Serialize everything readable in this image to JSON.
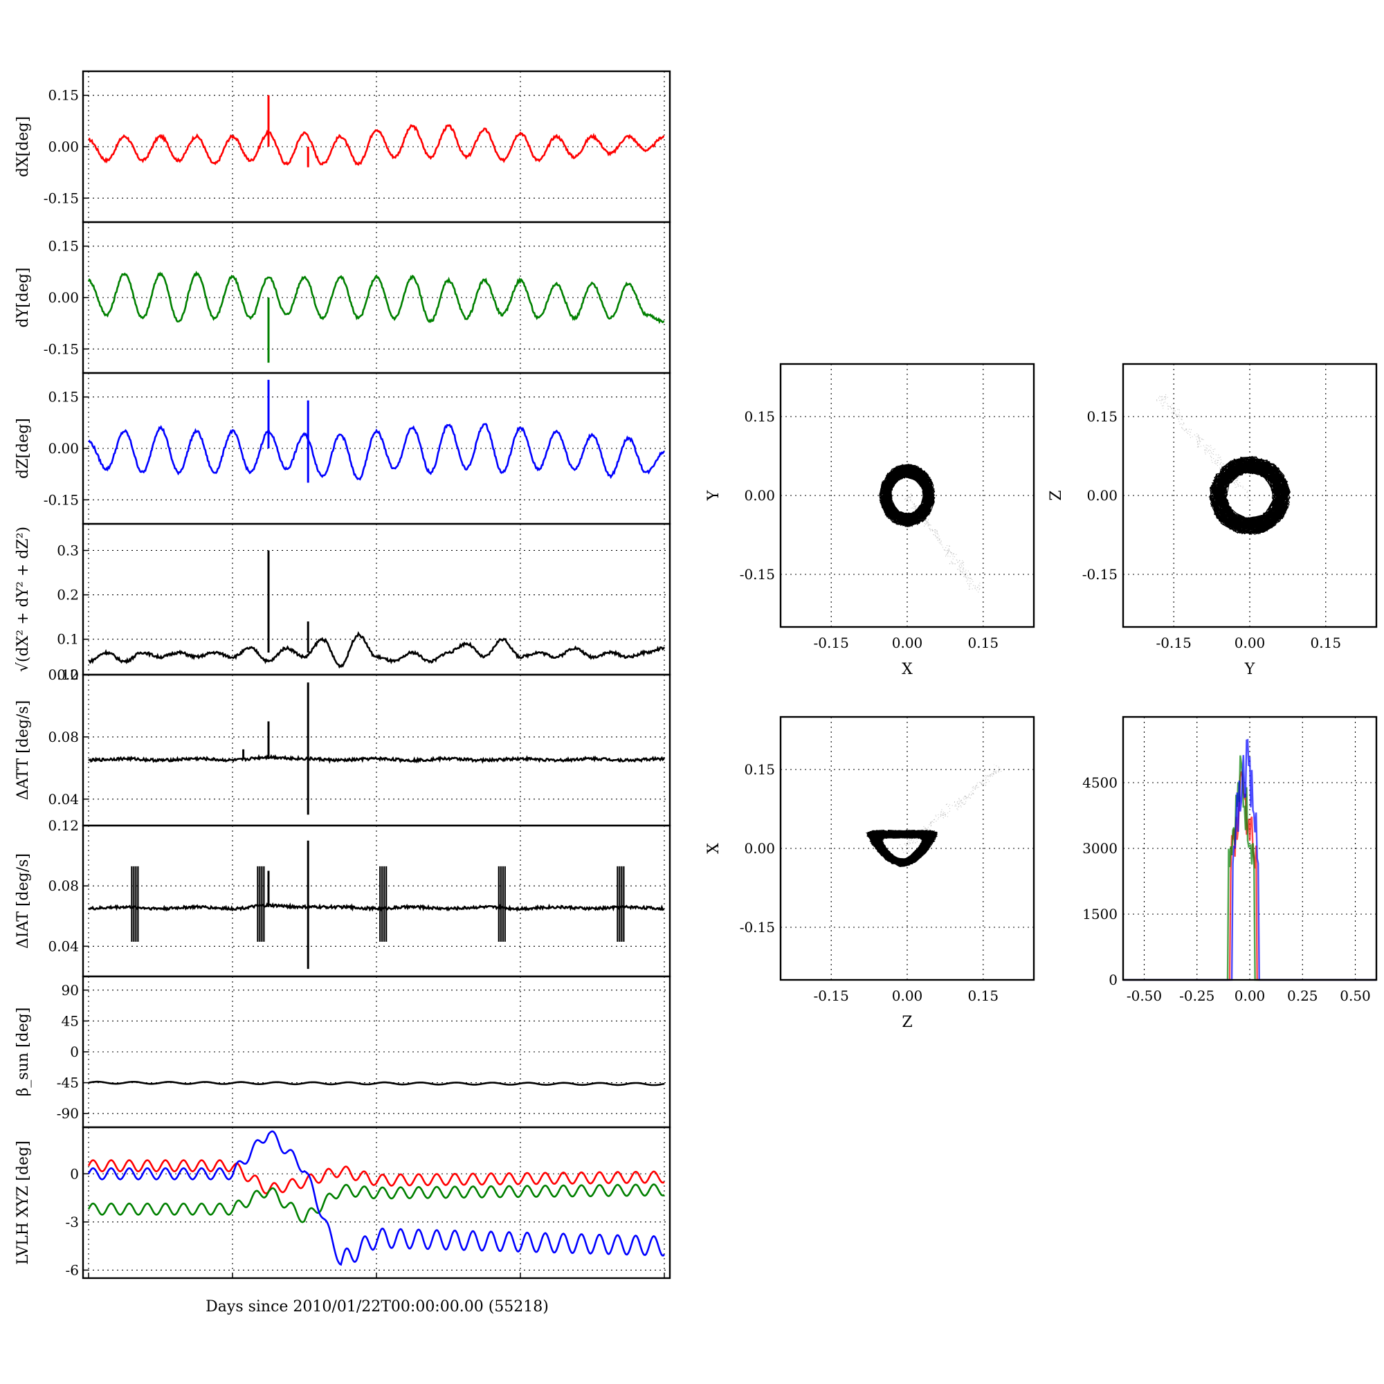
{
  "figure": {
    "xlabel": "Days since 2010/01/22T00:00:00.00 (55218)"
  },
  "chart_data": [
    {
      "type": "line",
      "id": "dX",
      "ylabel": "dX[deg]",
      "ylim": [
        -0.22,
        0.22
      ],
      "yticks": [
        "0.15",
        "0.00",
        "-0.15"
      ],
      "ytick_values": [
        0.15,
        0.0,
        -0.15
      ],
      "series": [
        {
          "color": "#ff0000",
          "x": [
            0,
            0.5,
            1,
            1.5,
            2,
            2.5,
            3,
            3.5,
            4,
            4.5,
            5,
            5.5,
            6,
            6.5,
            7,
            7.5,
            8,
            8.5,
            9,
            9.5,
            10,
            10.5,
            11,
            11.5,
            12,
            12.5,
            13,
            13.5,
            14,
            14.5,
            15,
            15.5,
            16
          ],
          "y": [
            0.02,
            -0.04,
            0.03,
            -0.04,
            0.03,
            -0.04,
            0.03,
            -0.05,
            0.03,
            -0.04,
            0.04,
            -0.05,
            0.04,
            -0.05,
            0.03,
            -0.05,
            0.05,
            -0.03,
            0.06,
            -0.03,
            0.06,
            -0.03,
            0.05,
            -0.04,
            0.04,
            -0.04,
            0.03,
            -0.03,
            0.03,
            -0.02,
            0.03,
            -0.01,
            0.03
          ],
          "spikes": [
            {
              "x": 5.0,
              "y": 0.15
            },
            {
              "x": 6.1,
              "y": -0.06
            }
          ]
        }
      ]
    },
    {
      "type": "line",
      "id": "dY",
      "ylabel": "dY[deg]",
      "ylim": [
        -0.22,
        0.22
      ],
      "yticks": [
        "0.15",
        "0.00",
        "-0.15"
      ],
      "ytick_values": [
        0.15,
        0.0,
        -0.15
      ],
      "series": [
        {
          "color": "#008000",
          "x": [
            0,
            0.5,
            1,
            1.5,
            2,
            2.5,
            3,
            3.5,
            4,
            4.5,
            5,
            5.5,
            6,
            6.5,
            7,
            7.5,
            8,
            8.5,
            9,
            9.5,
            10,
            10.5,
            11,
            11.5,
            12,
            12.5,
            13,
            13.5,
            14,
            14.5,
            15,
            15.5,
            16
          ],
          "y": [
            0.05,
            -0.05,
            0.07,
            -0.06,
            0.07,
            -0.07,
            0.07,
            -0.06,
            0.06,
            -0.06,
            0.06,
            -0.05,
            0.06,
            -0.06,
            0.06,
            -0.06,
            0.06,
            -0.06,
            0.06,
            -0.07,
            0.05,
            -0.06,
            0.05,
            -0.05,
            0.05,
            -0.06,
            0.04,
            -0.06,
            0.04,
            -0.06,
            0.04,
            -0.05,
            -0.07
          ],
          "spikes": [
            {
              "x": 5.0,
              "y": -0.19
            }
          ]
        }
      ]
    },
    {
      "type": "line",
      "id": "dZ",
      "ylabel": "dZ[deg]",
      "ylim": [
        -0.22,
        0.22
      ],
      "yticks": [
        "0.15",
        "0.00",
        "-0.15"
      ],
      "ytick_values": [
        0.15,
        0.0,
        -0.15
      ],
      "series": [
        {
          "color": "#0000ff",
          "x": [
            0,
            0.5,
            1,
            1.5,
            2,
            2.5,
            3,
            3.5,
            4,
            4.5,
            5,
            5.5,
            6,
            6.5,
            7,
            7.5,
            8,
            8.5,
            9,
            9.5,
            10,
            10.5,
            11,
            11.5,
            12,
            12.5,
            13,
            13.5,
            14,
            14.5,
            15,
            15.5,
            16
          ],
          "y": [
            0.02,
            -0.06,
            0.05,
            -0.07,
            0.06,
            -0.07,
            0.05,
            -0.07,
            0.05,
            -0.07,
            0.05,
            -0.06,
            0.04,
            -0.08,
            0.04,
            -0.09,
            0.05,
            -0.06,
            0.06,
            -0.07,
            0.07,
            -0.06,
            0.07,
            -0.07,
            0.06,
            -0.06,
            0.05,
            -0.06,
            0.04,
            -0.08,
            0.03,
            -0.07,
            -0.01
          ],
          "spikes": [
            {
              "x": 5.0,
              "y": 0.2
            },
            {
              "x": 6.1,
              "y": 0.14
            },
            {
              "x": 6.1,
              "y": -0.1
            }
          ]
        }
      ]
    },
    {
      "type": "line",
      "id": "dR",
      "ylabel": "√(dX² + dY² + dZ²)",
      "ylim": [
        0.02,
        0.36
      ],
      "yticks": [
        "0.3",
        "0.2",
        "0.1",
        "0.0"
      ],
      "ytick_values": [
        0.3,
        0.2,
        0.1,
        0.02
      ],
      "series": [
        {
          "color": "#000000",
          "x": [
            0,
            0.5,
            1,
            1.5,
            2,
            2.5,
            3,
            3.5,
            4,
            4.5,
            5,
            5.5,
            6,
            6.5,
            7,
            7.5,
            8,
            8.5,
            9,
            9.5,
            10,
            10.5,
            11,
            11.5,
            12,
            12.5,
            13,
            13.5,
            14,
            14.5,
            15,
            15.5,
            16
          ],
          "y": [
            0.05,
            0.07,
            0.05,
            0.07,
            0.06,
            0.07,
            0.06,
            0.07,
            0.06,
            0.08,
            0.05,
            0.08,
            0.06,
            0.1,
            0.04,
            0.11,
            0.06,
            0.05,
            0.07,
            0.05,
            0.07,
            0.09,
            0.06,
            0.1,
            0.06,
            0.07,
            0.06,
            0.08,
            0.06,
            0.07,
            0.06,
            0.07,
            0.08
          ],
          "spikes": [
            {
              "x": 5.0,
              "y": 0.3
            },
            {
              "x": 6.1,
              "y": 0.14
            }
          ]
        }
      ]
    },
    {
      "type": "line",
      "id": "dATT",
      "ylabel": "ΔATT [deg/s]",
      "ylim": [
        0.023,
        0.12
      ],
      "yticks": [
        "0.12",
        "0.08",
        "0.04"
      ],
      "ytick_values": [
        0.12,
        0.08,
        0.04
      ],
      "series": [
        {
          "color": "#000000",
          "x": [
            0,
            1,
            2,
            3,
            4,
            5,
            6,
            7,
            8,
            9,
            10,
            11,
            12,
            13,
            14,
            15,
            16
          ],
          "y": [
            0.065,
            0.066,
            0.065,
            0.066,
            0.065,
            0.067,
            0.066,
            0.065,
            0.066,
            0.065,
            0.066,
            0.065,
            0.066,
            0.065,
            0.066,
            0.065,
            0.066
          ],
          "spikes": [
            {
              "x": 5.0,
              "y": 0.09
            },
            {
              "x": 6.1,
              "y": 0.115
            },
            {
              "x": 6.1,
              "y": 0.03
            },
            {
              "x": 4.3,
              "y": 0.072
            }
          ]
        }
      ]
    },
    {
      "type": "line",
      "id": "dIAT",
      "ylabel": "ΔIAT [deg/s]",
      "ylim": [
        0.02,
        0.12
      ],
      "yticks": [
        "0.12",
        "0.08",
        "0.04"
      ],
      "ytick_values": [
        0.12,
        0.08,
        0.04
      ],
      "series": [
        {
          "color": "#000000",
          "x": [
            0,
            1,
            2,
            3,
            4,
            5,
            6,
            7,
            8,
            9,
            10,
            11,
            12,
            13,
            14,
            15,
            16
          ],
          "y": [
            0.065,
            0.066,
            0.065,
            0.066,
            0.065,
            0.067,
            0.066,
            0.066,
            0.065,
            0.066,
            0.065,
            0.066,
            0.065,
            0.066,
            0.065,
            0.066,
            0.065
          ],
          "bursts": [
            1.2,
            4.7,
            8.1,
            11.4,
            14.7
          ],
          "spikes": [
            {
              "x": 6.1,
              "y": 0.11
            },
            {
              "x": 6.1,
              "y": 0.025
            },
            {
              "x": 5.0,
              "y": 0.09
            }
          ]
        }
      ]
    },
    {
      "type": "line",
      "id": "beta",
      "ylabel": "β_sun [deg]",
      "ylim": [
        -110,
        110
      ],
      "yticks": [
        "90",
        "45",
        "0",
        "-45",
        "-90"
      ],
      "ytick_values": [
        90,
        45,
        0,
        -45,
        -90
      ],
      "series": [
        {
          "color": "#000000",
          "x": [
            0,
            16
          ],
          "y": [
            -45,
            -47
          ]
        }
      ]
    },
    {
      "type": "line",
      "id": "lvlh",
      "ylabel": "LVLH XYZ [deg]",
      "ylim": [
        -6.5,
        2.9
      ],
      "yticks": [
        "0",
        "-3",
        "-6"
      ],
      "ytick_values": [
        0,
        -3,
        -6
      ],
      "series": [
        {
          "color": "#ff0000",
          "x": [
            0,
            4,
            5,
            6,
            7,
            8,
            16
          ],
          "y": [
            0.5,
            0.5,
            -1.0,
            -0.5,
            0.2,
            -0.4,
            -0.2
          ]
        },
        {
          "color": "#008000",
          "x": [
            0,
            4,
            5,
            6,
            7,
            8,
            16
          ],
          "y": [
            -2.2,
            -2.2,
            -1.0,
            -2.8,
            -1.0,
            -1.2,
            -1.0
          ]
        },
        {
          "color": "#0000ff",
          "x": [
            0,
            4,
            5,
            6,
            7,
            8,
            16
          ],
          "y": [
            0,
            0,
            2.6,
            0.3,
            -5.5,
            -4.0,
            -4.5
          ]
        }
      ]
    },
    {
      "type": "scatter",
      "id": "XY",
      "xlabel": "X",
      "ylabel": "Y",
      "xlim": [
        -0.25,
        0.25
      ],
      "ylim": [
        -0.25,
        0.25
      ],
      "xticks": [
        "-0.15",
        "0.00",
        "0.15"
      ],
      "yticks": [
        "0.15",
        "0.00",
        "-0.15"
      ],
      "cluster_center": [
        0.0,
        -0.0
      ],
      "cluster_radius": [
        0.055,
        0.06
      ],
      "tail_end": [
        0.14,
        -0.18
      ]
    },
    {
      "type": "scatter",
      "id": "YZ",
      "xlabel": "Y",
      "ylabel": "Z",
      "xlim": [
        -0.25,
        0.25
      ],
      "ylim": [
        -0.25,
        0.25
      ],
      "xticks": [
        "-0.15",
        "0.00",
        "0.15"
      ],
      "yticks": [
        "0.15",
        "0.00",
        "-0.15"
      ],
      "cluster_center": [
        0.0,
        0.0
      ],
      "cluster_radius": [
        0.08,
        0.075
      ],
      "tail_end": [
        -0.18,
        0.19
      ]
    },
    {
      "type": "scatter",
      "id": "ZX",
      "xlabel": "Z",
      "ylabel": "X",
      "xlim": [
        -0.25,
        0.25
      ],
      "ylim": [
        -0.25,
        0.25
      ],
      "xticks": [
        "-0.15",
        "0.00",
        "0.15"
      ],
      "yticks": [
        "0.15",
        "0.00",
        "-0.15"
      ],
      "cluster_center": [
        -0.01,
        0.0
      ],
      "cluster_radius": [
        0.07,
        0.035
      ],
      "tail_end": [
        0.18,
        0.15
      ]
    },
    {
      "type": "histogram",
      "id": "hist",
      "xlim": [
        -0.6,
        0.6
      ],
      "ylim": [
        0,
        6000
      ],
      "xticks": [
        "-0.50",
        "-0.25",
        "0.00",
        "0.25",
        "0.50"
      ],
      "xtick_values": [
        -0.5,
        -0.25,
        0,
        0.25,
        0.5
      ],
      "yticks": [
        "4500",
        "3000",
        "1500",
        "0"
      ],
      "ytick_values": [
        4500,
        3000,
        1500,
        0
      ],
      "series": [
        {
          "color": "#ff0000",
          "peak": 5200,
          "center": -0.03
        },
        {
          "color": "#008000",
          "peak": 5400,
          "center": -0.04
        },
        {
          "color": "#0000ff",
          "peak": 5900,
          "center": -0.02
        }
      ]
    }
  ]
}
